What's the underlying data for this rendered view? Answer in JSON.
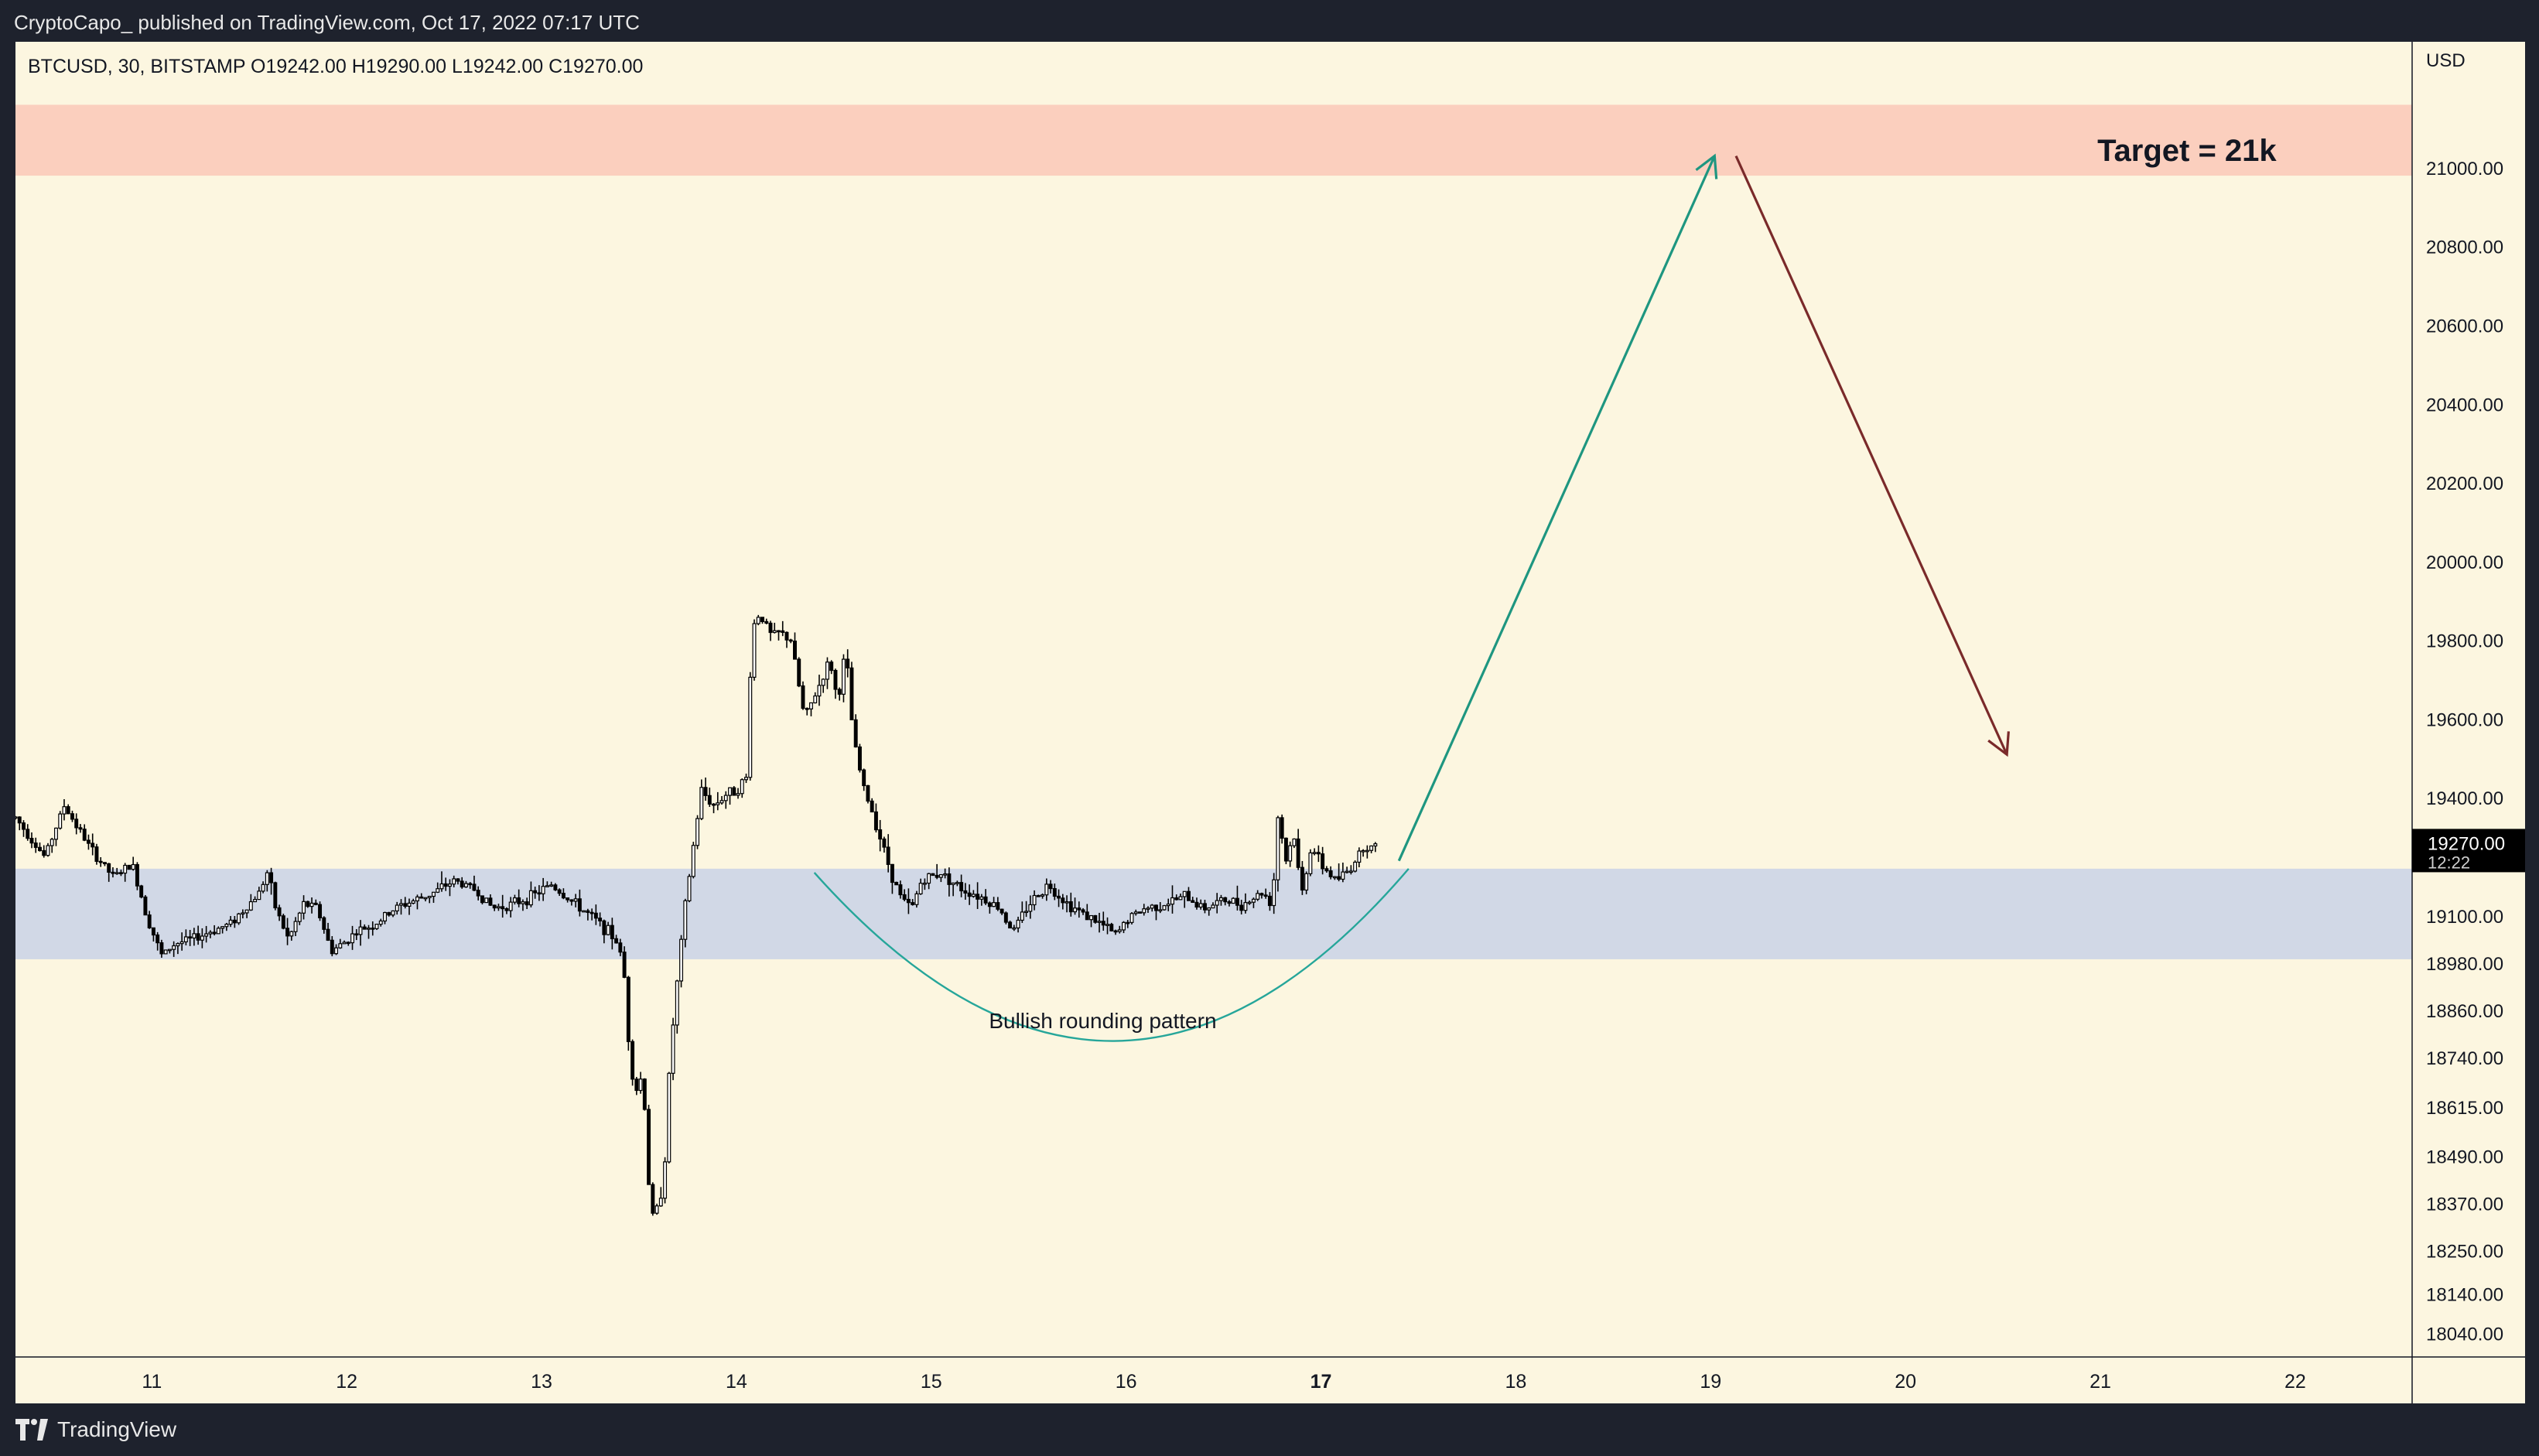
{
  "header": {
    "publisher": "CryptoCapo_ published on TradingView.com, Oct 17, 2022 07:17 UTC"
  },
  "footer": {
    "brand": "TradingView",
    "logo_icon": "tradingview-logo-icon"
  },
  "chart_data": {
    "type": "candlestick",
    "symbol_line": "BTCUSD, 30, BITSTAMP  O19242.00  H19290.00  L19242.00  C19270.00",
    "currency": "USD",
    "ylim": [
      17980,
      21320
    ],
    "xlim": [
      10.3,
      22.6
    ],
    "y_ticks": [
      "21000.00",
      "20800.00",
      "20600.00",
      "20400.00",
      "20200.00",
      "20000.00",
      "19800.00",
      "19600.00",
      "19400.00",
      "19100.00",
      "18980.00",
      "18860.00",
      "18740.00",
      "18615.00",
      "18490.00",
      "18370.00",
      "18250.00",
      "18140.00",
      "18040.00"
    ],
    "x_ticks": [
      {
        "label": "11",
        "x": 11
      },
      {
        "label": "12",
        "x": 12
      },
      {
        "label": "13",
        "x": 13
      },
      {
        "label": "14",
        "x": 14
      },
      {
        "label": "15",
        "x": 15
      },
      {
        "label": "16",
        "x": 16
      },
      {
        "label": "17",
        "x": 17,
        "bold": true
      },
      {
        "label": "18",
        "x": 18
      },
      {
        "label": "19",
        "x": 19
      },
      {
        "label": "20",
        "x": 20
      },
      {
        "label": "21",
        "x": 21
      },
      {
        "label": "22",
        "x": 22
      }
    ],
    "price_tag": {
      "value": "19270.00",
      "timer": "12:22"
    },
    "zones": [
      {
        "name": "target-zone",
        "y0": 20980,
        "y1": 21160,
        "color": "#fbcfbe"
      },
      {
        "name": "support-zone",
        "y0": 18990,
        "y1": 19220,
        "color": "#d1d8e6"
      }
    ],
    "annotations": {
      "target_label": "Target = 21k",
      "pattern_label": "Bullish rounding pattern",
      "pattern_label_pos": {
        "x": 15.88,
        "y": 18815
      },
      "target_label_pos": {
        "x": 22.0,
        "y": 21045
      },
      "rounding_curve": {
        "x0": 14.4,
        "y0": 19210,
        "cx": 15.95,
        "cy": 18350,
        "x1": 17.45,
        "y1": 19220,
        "color": "#26a69a"
      },
      "up_arrow": {
        "x0": 17.4,
        "y0": 19240,
        "x1": 19.02,
        "y1": 21030,
        "color": "#1e9680"
      },
      "down_arrow": {
        "x0": 19.13,
        "y0": 21030,
        "x1": 20.52,
        "y1": 19510,
        "color": "#7a2a2a"
      }
    },
    "price_path": [
      [
        10.3,
        19350
      ],
      [
        10.45,
        19250
      ],
      [
        10.55,
        19380
      ],
      [
        10.7,
        19260
      ],
      [
        10.8,
        19200
      ],
      [
        10.9,
        19230
      ],
      [
        10.98,
        19090
      ],
      [
        11.05,
        19000
      ],
      [
        11.12,
        19030
      ],
      [
        11.2,
        19040
      ],
      [
        11.3,
        19060
      ],
      [
        11.4,
        19080
      ],
      [
        11.5,
        19130
      ],
      [
        11.55,
        19160
      ],
      [
        11.6,
        19220
      ],
      [
        11.62,
        19140
      ],
      [
        11.7,
        19040
      ],
      [
        11.78,
        19130
      ],
      [
        11.85,
        19120
      ],
      [
        11.92,
        19010
      ],
      [
        11.98,
        19030
      ],
      [
        12.05,
        19060
      ],
      [
        12.15,
        19080
      ],
      [
        12.25,
        19120
      ],
      [
        12.35,
        19140
      ],
      [
        12.45,
        19160
      ],
      [
        12.55,
        19190
      ],
      [
        12.65,
        19170
      ],
      [
        12.75,
        19120
      ],
      [
        12.85,
        19130
      ],
      [
        12.95,
        19150
      ],
      [
        13.05,
        19180
      ],
      [
        13.12,
        19150
      ],
      [
        13.2,
        19120
      ],
      [
        13.3,
        19080
      ],
      [
        13.38,
        19040
      ],
      [
        13.42,
        18980
      ],
      [
        13.45,
        18760
      ],
      [
        13.48,
        18650
      ],
      [
        13.52,
        18700
      ],
      [
        13.56,
        18330
      ],
      [
        13.6,
        18360
      ],
      [
        13.63,
        18450
      ],
      [
        13.66,
        18750
      ],
      [
        13.7,
        18950
      ],
      [
        13.73,
        19100
      ],
      [
        13.78,
        19280
      ],
      [
        13.82,
        19420
      ],
      [
        13.88,
        19380
      ],
      [
        13.95,
        19410
      ],
      [
        14.0,
        19420
      ],
      [
        14.05,
        19450
      ],
      [
        14.08,
        19830
      ],
      [
        14.12,
        19870
      ],
      [
        14.18,
        19810
      ],
      [
        14.22,
        19820
      ],
      [
        14.28,
        19800
      ],
      [
        14.35,
        19600
      ],
      [
        14.42,
        19680
      ],
      [
        14.48,
        19750
      ],
      [
        14.52,
        19640
      ],
      [
        14.56,
        19780
      ],
      [
        14.6,
        19550
      ],
      [
        14.65,
        19430
      ],
      [
        14.7,
        19360
      ],
      [
        14.75,
        19280
      ],
      [
        14.8,
        19200
      ],
      [
        14.85,
        19140
      ],
      [
        14.9,
        19120
      ],
      [
        14.95,
        19190
      ],
      [
        15.05,
        19210
      ],
      [
        15.15,
        19170
      ],
      [
        15.25,
        19150
      ],
      [
        15.35,
        19120
      ],
      [
        15.42,
        19060
      ],
      [
        15.5,
        19130
      ],
      [
        15.6,
        19180
      ],
      [
        15.7,
        19130
      ],
      [
        15.8,
        19100
      ],
      [
        15.9,
        19070
      ],
      [
        15.95,
        19050
      ],
      [
        16.0,
        19090
      ],
      [
        16.1,
        19120
      ],
      [
        16.2,
        19130
      ],
      [
        16.3,
        19150
      ],
      [
        16.4,
        19120
      ],
      [
        16.5,
        19140
      ],
      [
        16.6,
        19130
      ],
      [
        16.7,
        19160
      ],
      [
        16.75,
        19130
      ],
      [
        16.78,
        19360
      ],
      [
        16.82,
        19240
      ],
      [
        16.86,
        19310
      ],
      [
        16.9,
        19150
      ],
      [
        16.95,
        19280
      ],
      [
        17.0,
        19230
      ],
      [
        17.08,
        19190
      ],
      [
        17.15,
        19220
      ],
      [
        17.22,
        19280
      ],
      [
        17.3,
        19270
      ]
    ]
  }
}
